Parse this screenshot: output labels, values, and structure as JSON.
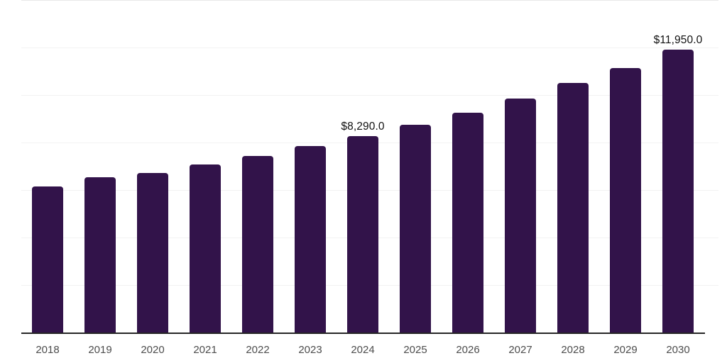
{
  "chart_data": {
    "type": "bar",
    "title": "",
    "categories": [
      "2018",
      "2019",
      "2020",
      "2021",
      "2022",
      "2023",
      "2024",
      "2025",
      "2026",
      "2027",
      "2028",
      "2029",
      "2030"
    ],
    "values": [
      6180,
      6570,
      6760,
      7100,
      7460,
      7880,
      8290,
      8780,
      9280,
      9880,
      10540,
      11180,
      11950
    ],
    "series_name": "",
    "data_labels": [
      {
        "category_index": 6,
        "text": "$8,290.0"
      },
      {
        "category_index": 12,
        "text": "$11,950.0"
      }
    ],
    "xlabel": "",
    "ylabel": "",
    "ylim": [
      0,
      14000
    ],
    "ytick_step": 2000,
    "yticks_shown": false,
    "grid": true,
    "legend": false,
    "colors": {
      "bar": "#32134a",
      "axis_line": "#262626",
      "gridline": "#f2f2f2",
      "top_gridline": "#e8e8e8",
      "tick_label": "#4d4d4d",
      "data_label": "#111111",
      "background": "#ffffff"
    }
  }
}
